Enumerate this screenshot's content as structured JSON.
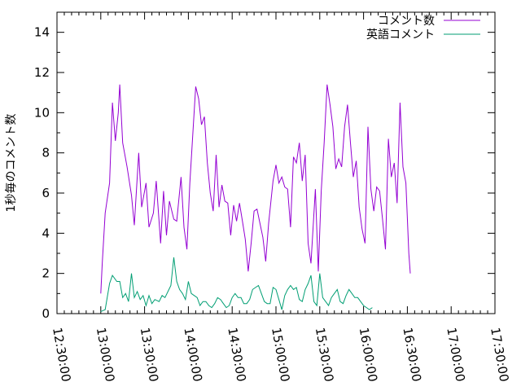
{
  "chart_data": {
    "type": "line",
    "title": "",
    "xlabel": "",
    "ylabel": "1秒毎のコメント数",
    "x_ticks": [
      "12:30:00",
      "13:00:00",
      "13:30:00",
      "14:00:00",
      "14:30:00",
      "15:00:00",
      "15:30:00",
      "16:00:00",
      "16:30:00",
      "17:00:00",
      "17:30:00"
    ],
    "xlim": [
      "12:30:00",
      "17:30:00"
    ],
    "ylim": [
      0,
      15
    ],
    "y_ticks": [
      0,
      2,
      4,
      6,
      8,
      10,
      12,
      14
    ],
    "legend_position": "top-right",
    "grid": false,
    "series": [
      {
        "name": "コメント数",
        "color": "#9400d3",
        "points": [
          [
            "13:00:00",
            1.0
          ],
          [
            "13:01:00",
            2.5
          ],
          [
            "13:03:00",
            5.0
          ],
          [
            "13:06:00",
            6.5
          ],
          [
            "13:08:00",
            10.5
          ],
          [
            "13:10:00",
            8.6
          ],
          [
            "13:12:00",
            10.0
          ],
          [
            "13:13:00",
            11.4
          ],
          [
            "13:15:00",
            8.5
          ],
          [
            "13:18:00",
            7.3
          ],
          [
            "13:21:00",
            5.9
          ],
          [
            "13:23:00",
            4.4
          ],
          [
            "13:26:00",
            8.0
          ],
          [
            "13:28:00",
            5.3
          ],
          [
            "13:31:00",
            6.5
          ],
          [
            "13:33:00",
            4.3
          ],
          [
            "13:36:00",
            5.0
          ],
          [
            "13:38:00",
            6.6
          ],
          [
            "13:41:00",
            3.5
          ],
          [
            "13:43:00",
            6.1
          ],
          [
            "13:45:00",
            3.9
          ],
          [
            "13:47:00",
            5.6
          ],
          [
            "13:50:00",
            4.7
          ],
          [
            "13:52:00",
            4.6
          ],
          [
            "13:55:00",
            6.8
          ],
          [
            "13:57:00",
            4.3
          ],
          [
            "13:59:00",
            3.2
          ],
          [
            "14:01:00",
            6.5
          ],
          [
            "14:03:00",
            8.9
          ],
          [
            "14:05:00",
            11.3
          ],
          [
            "14:07:00",
            10.7
          ],
          [
            "14:09:00",
            9.4
          ],
          [
            "14:11:00",
            9.8
          ],
          [
            "14:13:00",
            7.5
          ],
          [
            "14:15:00",
            6.0
          ],
          [
            "14:17:00",
            5.1
          ],
          [
            "14:19:00",
            7.9
          ],
          [
            "14:21:00",
            5.3
          ],
          [
            "14:23:00",
            6.4
          ],
          [
            "14:25:00",
            5.6
          ],
          [
            "14:27:00",
            5.5
          ],
          [
            "14:29:00",
            3.9
          ],
          [
            "14:31:00",
            5.4
          ],
          [
            "14:33:00",
            4.6
          ],
          [
            "14:35:00",
            5.5
          ],
          [
            "14:37:00",
            4.6
          ],
          [
            "14:39:00",
            3.7
          ],
          [
            "14:41:00",
            2.1
          ],
          [
            "14:43:00",
            3.5
          ],
          [
            "14:45:00",
            5.1
          ],
          [
            "14:47:00",
            5.2
          ],
          [
            "14:49:00",
            4.5
          ],
          [
            "14:51:00",
            3.8
          ],
          [
            "14:53:00",
            2.6
          ],
          [
            "14:55:00",
            4.5
          ],
          [
            "14:58:00",
            6.6
          ],
          [
            "15:00:00",
            7.4
          ],
          [
            "15:02:00",
            6.5
          ],
          [
            "15:04:00",
            6.8
          ],
          [
            "15:06:00",
            6.3
          ],
          [
            "15:08:00",
            6.2
          ],
          [
            "15:10:00",
            4.3
          ],
          [
            "15:12:00",
            7.8
          ],
          [
            "15:14:00",
            7.5
          ],
          [
            "15:16:00",
            8.5
          ],
          [
            "15:18:00",
            6.6
          ],
          [
            "15:20:00",
            7.9
          ],
          [
            "15:22:00",
            3.5
          ],
          [
            "15:24:00",
            2.5
          ],
          [
            "15:27:00",
            6.2
          ],
          [
            "15:29:00",
            2.1
          ],
          [
            "15:31:00",
            6.1
          ],
          [
            "15:33:00",
            8.5
          ],
          [
            "15:35:00",
            11.4
          ],
          [
            "15:37:00",
            10.4
          ],
          [
            "15:39:00",
            9.3
          ],
          [
            "15:41:00",
            7.2
          ],
          [
            "15:43:00",
            7.7
          ],
          [
            "15:45:00",
            7.3
          ],
          [
            "15:47:00",
            9.3
          ],
          [
            "15:49:00",
            10.4
          ],
          [
            "15:51:00",
            8.5
          ],
          [
            "15:53:00",
            6.8
          ],
          [
            "15:55:00",
            7.6
          ],
          [
            "15:57:00",
            5.3
          ],
          [
            "15:59:00",
            4.2
          ],
          [
            "16:01:00",
            3.5
          ],
          [
            "16:03:00",
            9.3
          ],
          [
            "16:05:00",
            6.2
          ],
          [
            "16:07:00",
            5.1
          ],
          [
            "16:09:00",
            6.3
          ],
          [
            "16:11:00",
            6.1
          ],
          [
            "16:13:00",
            4.7
          ],
          [
            "16:15:00",
            3.2
          ],
          [
            "16:17:00",
            8.7
          ],
          [
            "16:19:00",
            6.8
          ],
          [
            "16:21:00",
            7.5
          ],
          [
            "16:23:00",
            5.5
          ],
          [
            "16:25:00",
            10.5
          ],
          [
            "16:27:00",
            7.3
          ],
          [
            "16:29:00",
            6.5
          ],
          [
            "16:31:00",
            3.0
          ],
          [
            "16:32:00",
            2.0
          ]
        ]
      },
      {
        "name": "英語コメント",
        "color": "#009e73",
        "points": [
          [
            "13:00:00",
            0.1
          ],
          [
            "13:03:00",
            0.2
          ],
          [
            "13:06:00",
            1.5
          ],
          [
            "13:08:00",
            1.9
          ],
          [
            "13:11:00",
            1.6
          ],
          [
            "13:13:00",
            1.6
          ],
          [
            "13:15:00",
            0.8
          ],
          [
            "13:17:00",
            1.0
          ],
          [
            "13:19:00",
            0.6
          ],
          [
            "13:21:00",
            2.0
          ],
          [
            "13:23:00",
            0.8
          ],
          [
            "13:25:00",
            1.1
          ],
          [
            "13:27:00",
            0.7
          ],
          [
            "13:29:00",
            0.9
          ],
          [
            "13:31:00",
            0.4
          ],
          [
            "13:33:00",
            0.9
          ],
          [
            "13:35:00",
            0.5
          ],
          [
            "13:37:00",
            0.7
          ],
          [
            "13:40:00",
            0.6
          ],
          [
            "13:42:00",
            0.9
          ],
          [
            "13:44:00",
            0.8
          ],
          [
            "13:46:00",
            1.1
          ],
          [
            "13:48:00",
            1.4
          ],
          [
            "13:50:00",
            2.8
          ],
          [
            "13:52:00",
            1.6
          ],
          [
            "13:54:00",
            1.2
          ],
          [
            "13:56:00",
            1.0
          ],
          [
            "13:58:00",
            0.7
          ],
          [
            "14:00:00",
            1.6
          ],
          [
            "14:02:00",
            1.0
          ],
          [
            "14:04:00",
            0.9
          ],
          [
            "14:06:00",
            0.8
          ],
          [
            "14:08:00",
            0.4
          ],
          [
            "14:10:00",
            0.6
          ],
          [
            "14:12:00",
            0.6
          ],
          [
            "14:14:00",
            0.4
          ],
          [
            "14:16:00",
            0.3
          ],
          [
            "14:18:00",
            0.5
          ],
          [
            "14:20:00",
            0.8
          ],
          [
            "14:22:00",
            0.7
          ],
          [
            "14:24:00",
            0.5
          ],
          [
            "14:26:00",
            0.3
          ],
          [
            "14:28:00",
            0.4
          ],
          [
            "14:30:00",
            0.8
          ],
          [
            "14:32:00",
            1.0
          ],
          [
            "14:34:00",
            0.8
          ],
          [
            "14:36:00",
            0.8
          ],
          [
            "14:38:00",
            0.5
          ],
          [
            "14:40:00",
            0.5
          ],
          [
            "14:42:00",
            0.7
          ],
          [
            "14:44:00",
            1.2
          ],
          [
            "14:46:00",
            1.3
          ],
          [
            "14:48:00",
            1.4
          ],
          [
            "14:50:00",
            1.0
          ],
          [
            "14:52:00",
            0.6
          ],
          [
            "14:54:00",
            0.5
          ],
          [
            "14:56:00",
            0.5
          ],
          [
            "14:58:00",
            1.3
          ],
          [
            "15:00:00",
            1.2
          ],
          [
            "15:02:00",
            0.7
          ],
          [
            "15:04:00",
            0.2
          ],
          [
            "15:06:00",
            0.9
          ],
          [
            "15:08:00",
            1.2
          ],
          [
            "15:10:00",
            1.4
          ],
          [
            "15:12:00",
            1.2
          ],
          [
            "15:14:00",
            1.3
          ],
          [
            "15:16:00",
            0.7
          ],
          [
            "15:18:00",
            0.6
          ],
          [
            "15:20:00",
            1.2
          ],
          [
            "15:22:00",
            1.5
          ],
          [
            "15:24:00",
            1.9
          ],
          [
            "15:26:00",
            0.6
          ],
          [
            "15:28:00",
            0.4
          ],
          [
            "15:30:00",
            2.0
          ],
          [
            "15:32:00",
            0.8
          ],
          [
            "15:34:00",
            0.6
          ],
          [
            "15:36:00",
            0.4
          ],
          [
            "15:38:00",
            0.8
          ],
          [
            "15:40:00",
            1.0
          ],
          [
            "15:42:00",
            1.2
          ],
          [
            "15:44:00",
            0.6
          ],
          [
            "15:46:00",
            0.5
          ],
          [
            "15:48:00",
            0.9
          ],
          [
            "15:50:00",
            1.2
          ],
          [
            "15:52:00",
            1.0
          ],
          [
            "15:54:00",
            0.8
          ],
          [
            "15:56:00",
            0.8
          ],
          [
            "15:58:00",
            0.6
          ],
          [
            "16:00:00",
            0.4
          ],
          [
            "16:02:00",
            0.3
          ],
          [
            "16:04:00",
            0.2
          ],
          [
            "16:06:00",
            0.3
          ]
        ]
      }
    ]
  }
}
